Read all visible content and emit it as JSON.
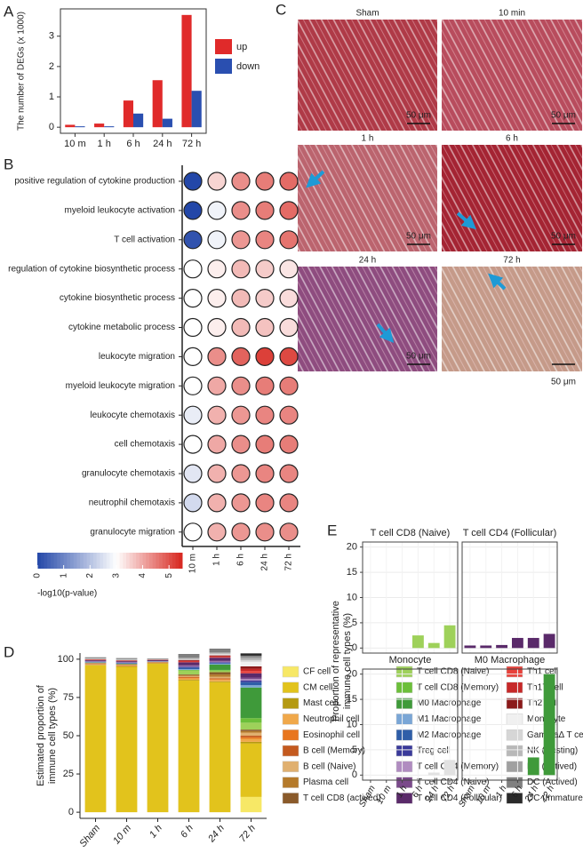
{
  "chart_data": [
    {
      "type": "bar",
      "panel_label": "A",
      "ylabel": "The number of DEGs (x 1000)",
      "categories": [
        "10 m",
        "1 h",
        "6 h",
        "24 h",
        "72 h"
      ],
      "series": [
        {
          "name": "up",
          "color": "#e02a2a",
          "values": [
            0.08,
            0.12,
            0.88,
            1.55,
            3.7
          ]
        },
        {
          "name": "down",
          "color": "#2a4fb0",
          "values": [
            0.03,
            0.03,
            0.45,
            0.28,
            1.2
          ]
        }
      ],
      "ylim": [
        -0.2,
        3.9
      ],
      "yticks": [
        0,
        1,
        2,
        3
      ]
    },
    {
      "type": "dot",
      "panel_label": "B",
      "rows": [
        "positive regulation of cytokine production",
        "myeloid leukocyte activation",
        "T cell activation",
        "regulation of cytokine biosynthetic process",
        "cytokine biosynthetic process",
        "cytokine metabolic process",
        "leukocyte migration",
        "myeloid leukocyte migration",
        "leukocyte chemotaxis",
        "cell chemotaxis",
        "granulocyte chemotaxis",
        "neutrophil chemotaxis",
        "granulocyte migration"
      ],
      "columns": [
        "10 m",
        "1 h",
        "6 h",
        "24 h",
        "72 h"
      ],
      "values": [
        [
          0,
          3.5,
          4.3,
          4.5,
          4.7
        ],
        [
          0,
          2.8,
          4.3,
          4.5,
          4.7
        ],
        [
          0.2,
          2.8,
          4.2,
          4.4,
          4.6
        ],
        [
          3,
          3.2,
          3.8,
          3.6,
          3.3
        ],
        [
          3,
          3.2,
          3.8,
          3.6,
          3.4
        ],
        [
          3,
          3.2,
          3.8,
          3.7,
          3.4
        ],
        [
          3,
          4.3,
          4.8,
          5.2,
          5.1
        ],
        [
          3,
          4,
          4.3,
          4.5,
          4.5
        ],
        [
          2.7,
          3.9,
          4.2,
          4.4,
          4.4
        ],
        [
          3,
          4,
          4.3,
          4.5,
          4.5
        ],
        [
          2.6,
          3.9,
          4.2,
          4.4,
          4.4
        ],
        [
          2.4,
          3.9,
          4.2,
          4.4,
          4.4
        ],
        [
          3,
          3.9,
          4.2,
          4.3,
          4.3
        ]
      ],
      "color_stops": [
        {
          "value": 0,
          "color": "#2347a8"
        },
        {
          "value": 3,
          "color": "#ffffff"
        },
        {
          "value": 5.5,
          "color": "#d7261e"
        }
      ],
      "clim": [
        0,
        5.5
      ],
      "cticks": [
        0,
        1,
        2,
        3,
        4,
        5
      ],
      "colorbar_title": "-log10(p-value)"
    },
    {
      "type": "image_grid",
      "panel_label": "C",
      "images": [
        {
          "label": "Sham",
          "scale_bar": "50 μm",
          "color": "#c8505a"
        },
        {
          "label": "10 min",
          "scale_bar": "50 μm",
          "color": "#d46a78"
        },
        {
          "label": "1 h",
          "scale_bar": "50 μm",
          "color": "#d88a90"
        },
        {
          "label": "6 h",
          "scale_bar": "50 μm",
          "color": "#b8323e"
        },
        {
          "label": "24 h",
          "scale_bar": "50 μm",
          "color": "#9a6aa8"
        },
        {
          "label": "72 h",
          "scale_bar": "50 μm",
          "color": "#e6d6b6"
        }
      ]
    },
    {
      "type": "stacked_bar",
      "panel_label": "D",
      "ylabel_lines": [
        "Estimated proportion of",
        "immune cell types (%)"
      ],
      "categories": [
        "Sham",
        "10 m",
        "1 h",
        "6 h",
        "24 h",
        "72 h"
      ],
      "ylim": [
        -4,
        104
      ],
      "yticks": [
        0,
        25,
        50,
        75,
        100
      ],
      "series": [
        {
          "name": "CF cell",
          "color": "#f7e866",
          "values": [
            0,
            0,
            0,
            0,
            0,
            10
          ]
        },
        {
          "name": "CM cell",
          "color": "#e2c31c",
          "values": [
            96,
            95,
            97,
            86,
            85,
            35
          ]
        },
        {
          "name": "Mast cell",
          "color": "#b59a12",
          "values": [
            0.3,
            0.3,
            0.3,
            0.5,
            0.5,
            1
          ]
        },
        {
          "name": "Neutrophil cell",
          "color": "#f0a84a",
          "values": [
            0.3,
            0.3,
            0.3,
            1,
            1,
            2
          ]
        },
        {
          "name": "Eosinophil cell",
          "color": "#e8761e",
          "values": [
            0.2,
            0.2,
            0.2,
            0.5,
            0.5,
            1
          ]
        },
        {
          "name": "B cell (Memory)",
          "color": "#c45a1f",
          "values": [
            0.2,
            0.2,
            0.1,
            0.5,
            0.5,
            1
          ]
        },
        {
          "name": "B cell (Naive)",
          "color": "#e0b070",
          "values": [
            0.2,
            0.2,
            0.1,
            0.5,
            1,
            2
          ]
        },
        {
          "name": "Plasma cell",
          "color": "#b57a2a",
          "values": [
            0.2,
            0.3,
            0.1,
            0.5,
            1.5,
            1
          ]
        },
        {
          "name": "T cell CD8 (actived)",
          "color": "#8a5a2a",
          "values": [
            0.2,
            0.3,
            0.1,
            0.5,
            1.5,
            1
          ]
        },
        {
          "name": "T cell CD8 (Naive)",
          "color": "#9ed15a",
          "values": [
            0,
            0,
            0,
            2.5,
            1,
            4.5
          ]
        },
        {
          "name": "T cell CD8 (Memory)",
          "color": "#6cbf3a",
          "values": [
            0.2,
            0.2,
            0.1,
            0.5,
            0.5,
            3
          ]
        },
        {
          "name": "M0 Macrophage",
          "color": "#3f9a3a",
          "values": [
            0,
            0,
            0,
            0,
            3.5,
            20
          ]
        },
        {
          "name": "M1 Macrophage",
          "color": "#7aa6d6",
          "values": [
            0.2,
            0.3,
            0.1,
            0.5,
            0.5,
            1.5
          ]
        },
        {
          "name": "M2 Macrophage",
          "color": "#2f5ea8",
          "values": [
            0.3,
            0.3,
            0.1,
            1,
            0.5,
            2
          ]
        },
        {
          "name": "Treg cell",
          "color": "#3a3a9a",
          "values": [
            0.2,
            0.2,
            0.1,
            0.5,
            0.5,
            1
          ]
        },
        {
          "name": "T cell CD4 (Memory)",
          "color": "#b08cc0",
          "values": [
            0.2,
            0.2,
            0.1,
            0.5,
            0.5,
            1
          ]
        },
        {
          "name": "T cell CD4 (Naive)",
          "color": "#7a4a8a",
          "values": [
            0.2,
            0.2,
            0.1,
            0.5,
            0.5,
            1
          ]
        },
        {
          "name": "T cell CD4 (Follicular)",
          "color": "#5a2a6a",
          "values": [
            0.5,
            0.5,
            0.6,
            2,
            2,
            2.8
          ]
        },
        {
          "name": "Th1 cell",
          "color": "#e8413a",
          "values": [
            0.2,
            0.2,
            0.1,
            0.5,
            0.5,
            1.5
          ]
        },
        {
          "name": "Th17 cell",
          "color": "#c62828",
          "values": [
            0.2,
            0.2,
            0.1,
            0.5,
            0.5,
            1.5
          ]
        },
        {
          "name": "Th2 cell",
          "color": "#8b1a1a",
          "values": [
            0.2,
            0.2,
            0.1,
            0.5,
            0.5,
            1.5
          ]
        },
        {
          "name": "Monocyte",
          "color": "#f0f0f0",
          "values": [
            0,
            0,
            0,
            0,
            0.5,
            3
          ]
        },
        {
          "name": "GammaΔ T cell",
          "color": "#d6d6d6",
          "values": [
            0.2,
            0.2,
            0.1,
            0.5,
            0.5,
            1
          ]
        },
        {
          "name": "NK (Resting)",
          "color": "#b8b8b8",
          "values": [
            0.2,
            0.3,
            0.1,
            0.5,
            0.5,
            1
          ]
        },
        {
          "name": "NK (Actived)",
          "color": "#a0a0a0",
          "values": [
            0.2,
            0.3,
            0.1,
            0.5,
            0.5,
            1
          ]
        },
        {
          "name": "DC (Actived)",
          "color": "#808080",
          "values": [
            0.5,
            0.5,
            0.3,
            2,
            2,
            1
          ]
        },
        {
          "name": "DC (Immature)",
          "color": "#2a2a2a",
          "values": [
            0.1,
            0.1,
            0.1,
            0.3,
            0.3,
            1.5
          ]
        }
      ]
    },
    {
      "type": "facet_bar",
      "panel_label": "E",
      "ylabel_lines": [
        "Proportion of representative",
        "immune cell types (%)"
      ],
      "categories": [
        "Sham",
        "10 m",
        "1 h",
        "6 h",
        "24 h",
        "72 h"
      ],
      "ylim": [
        -1,
        21
      ],
      "yticks": [
        0,
        5,
        10,
        15,
        20
      ],
      "facets": [
        {
          "name": "T cell CD8 (Naive)",
          "color": "#9ed15a",
          "values": [
            0,
            0,
            0,
            2.5,
            1,
            4.5
          ]
        },
        {
          "name": "T cell CD4 (Follicular)",
          "color": "#5a2a6a",
          "values": [
            0.5,
            0.5,
            0.6,
            2,
            2,
            2.8
          ]
        },
        {
          "name": "Monocyte",
          "color": "#e2e2e2",
          "values": [
            0,
            0,
            0,
            0,
            0.5,
            3
          ]
        },
        {
          "name": "M0 Macrophage",
          "color": "#3f9a3a",
          "values": [
            0,
            0,
            0,
            0,
            3.5,
            20
          ]
        }
      ]
    }
  ]
}
